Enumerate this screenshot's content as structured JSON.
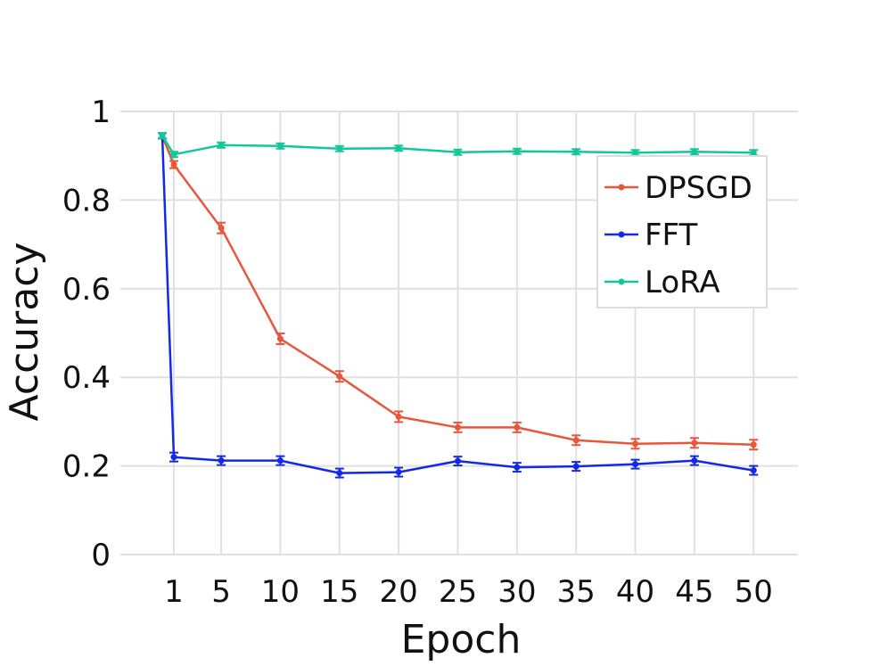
{
  "chart_data": {
    "type": "line",
    "title": "",
    "xlabel": "Epoch",
    "ylabel": "Accuracy",
    "x_ticks": [
      1,
      5,
      10,
      15,
      20,
      25,
      30,
      35,
      40,
      45,
      50
    ],
    "x_tick_labels": [
      "1",
      "5",
      "10",
      "15",
      "20",
      "25",
      "30",
      "35",
      "40",
      "45",
      "50"
    ],
    "y_ticks": [
      0,
      0.2,
      0.4,
      0.6,
      0.8,
      1
    ],
    "y_tick_labels": [
      "0",
      "0.2",
      "0.4",
      "0.6",
      "0.8",
      "1"
    ],
    "ylim": [
      0,
      1
    ],
    "grid": true,
    "legend_position": "top-right",
    "series": [
      {
        "name": "DPSGD",
        "color": "#e8563b",
        "x": [
          0,
          1,
          5,
          10,
          15,
          20,
          25,
          30,
          35,
          40,
          45,
          50
        ],
        "values": [
          0.945,
          0.88,
          0.737,
          0.487,
          0.402,
          0.311,
          0.287,
          0.287,
          0.258,
          0.25,
          0.252,
          0.248
        ],
        "errors": [
          0.006,
          0.008,
          0.012,
          0.012,
          0.012,
          0.012,
          0.011,
          0.011,
          0.011,
          0.011,
          0.011,
          0.011
        ]
      },
      {
        "name": "FFT",
        "color": "#1428e6",
        "x": [
          0,
          1,
          5,
          10,
          15,
          20,
          25,
          30,
          35,
          40,
          45,
          50
        ],
        "values": [
          0.945,
          0.22,
          0.212,
          0.212,
          0.184,
          0.186,
          0.211,
          0.197,
          0.199,
          0.204,
          0.212,
          0.19
        ],
        "errors": [
          0.006,
          0.01,
          0.01,
          0.01,
          0.01,
          0.01,
          0.01,
          0.01,
          0.01,
          0.01,
          0.01,
          0.01
        ]
      },
      {
        "name": "LoRA",
        "color": "#12c79a",
        "x": [
          0,
          1,
          5,
          10,
          15,
          20,
          25,
          30,
          35,
          40,
          45,
          50
        ],
        "values": [
          0.945,
          0.903,
          0.924,
          0.922,
          0.916,
          0.917,
          0.908,
          0.91,
          0.909,
          0.907,
          0.909,
          0.907
        ],
        "errors": [
          0.006,
          0.006,
          0.006,
          0.006,
          0.006,
          0.006,
          0.006,
          0.006,
          0.006,
          0.006,
          0.006,
          0.006
        ]
      }
    ]
  }
}
